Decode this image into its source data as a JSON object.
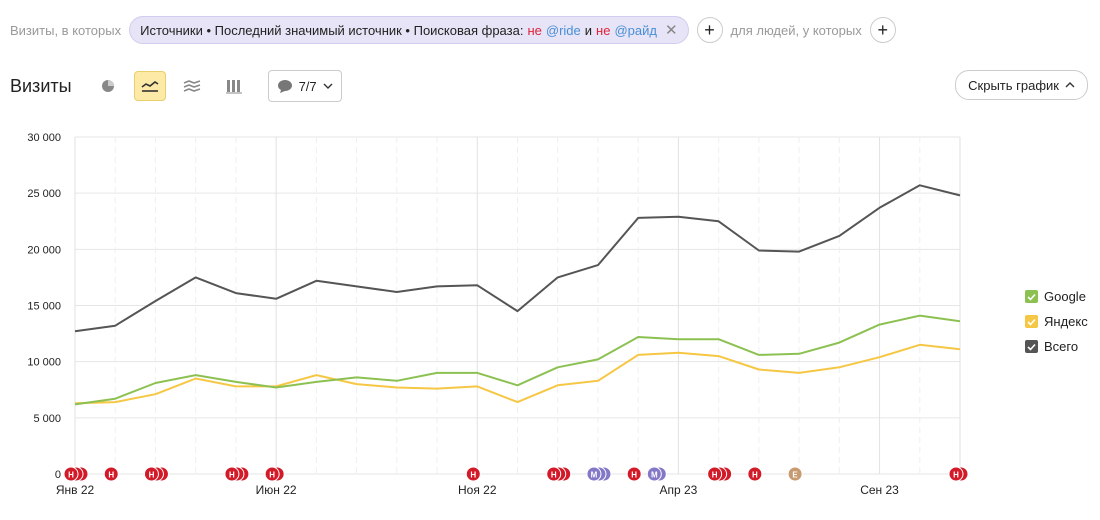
{
  "filter": {
    "prefix": "Визиты, в которых",
    "chip_text": "Источники • Последний значимый источник • Поисковая фраза:",
    "not1": "не",
    "kw1": "@ride",
    "and": "и",
    "not2": "не",
    "kw2": "@райд",
    "close": "✕",
    "people_label": "для людей, у которых",
    "add": "+"
  },
  "header": {
    "title": "Визиты",
    "notes_count": "7/7",
    "hide_chart": "Скрыть график"
  },
  "colors": {
    "google": "#8cc152",
    "yandex": "#f6c744",
    "total": "#555555"
  },
  "chart_data": {
    "type": "line",
    "x": [
      "2022-01",
      "2022-02",
      "2022-03",
      "2022-04",
      "2022-05",
      "2022-06",
      "2022-07",
      "2022-08",
      "2022-09",
      "2022-10",
      "2022-11",
      "2022-12",
      "2023-01",
      "2023-02",
      "2023-03",
      "2023-04",
      "2023-05",
      "2023-06",
      "2023-07",
      "2023-08",
      "2023-09",
      "2023-10",
      "2023-11"
    ],
    "x_tick_labels": [
      {
        "index": 0,
        "label": "Янв 22"
      },
      {
        "index": 5,
        "label": "Июн 22"
      },
      {
        "index": 10,
        "label": "Ноя 22"
      },
      {
        "index": 15,
        "label": "Апр 23"
      },
      {
        "index": 20,
        "label": "Сен 23"
      }
    ],
    "ylim": [
      0,
      30000
    ],
    "y_ticks": [
      0,
      5000,
      10000,
      15000,
      20000,
      25000,
      30000
    ],
    "y_tick_labels": [
      "0",
      "5 000",
      "10 000",
      "15 000",
      "20 000",
      "25 000",
      "30 000"
    ],
    "series": [
      {
        "name": "Google",
        "values": [
          6200,
          6700,
          8100,
          8800,
          8200,
          7700,
          8200,
          8600,
          8300,
          9000,
          9000,
          7900,
          9500,
          10200,
          12200,
          12000,
          12000,
          10600,
          10700,
          11700,
          13300,
          14100,
          13600
        ]
      },
      {
        "name": "Яндекс",
        "values": [
          6300,
          6400,
          7100,
          8500,
          7800,
          7800,
          8800,
          8000,
          7700,
          7600,
          7800,
          6400,
          7900,
          8300,
          10600,
          10800,
          10500,
          9300,
          9000,
          9500,
          10400,
          11500,
          11100
        ]
      },
      {
        "name": "Всего",
        "values": [
          12700,
          13200,
          15400,
          17500,
          16100,
          15600,
          17200,
          16700,
          16200,
          16700,
          16800,
          14500,
          17500,
          18600,
          22800,
          22900,
          22500,
          19900,
          19800,
          21200,
          23700,
          25700,
          24800
        ]
      }
    ],
    "legend_position": "right",
    "grid": true,
    "annotations": [
      {
        "x": 0,
        "count": 3,
        "type": "Н"
      },
      {
        "x": 1,
        "count": 1,
        "type": "Н"
      },
      {
        "x": 2,
        "count": 3,
        "type": "Н"
      },
      {
        "x": 4,
        "count": 3,
        "type": "Н"
      },
      {
        "x": 5,
        "count": 2,
        "type": "Н"
      },
      {
        "x": 10,
        "count": 1,
        "type": "Н"
      },
      {
        "x": 12,
        "count": 3,
        "type": "Н"
      },
      {
        "x": 13,
        "count": 3,
        "type": "М"
      },
      {
        "x": 14,
        "count": 1,
        "type": "Н"
      },
      {
        "x": 14.5,
        "count": 2,
        "type": "М"
      },
      {
        "x": 16,
        "count": 3,
        "type": "Н"
      },
      {
        "x": 17,
        "count": 1,
        "type": "Н"
      },
      {
        "x": 18,
        "count": 1,
        "type": "Е"
      },
      {
        "x": 22,
        "count": 2,
        "type": "Н"
      }
    ],
    "marker_colors": {
      "Н": "#d21a28",
      "М": "#8378c8",
      "Е": "#c89a70"
    }
  }
}
